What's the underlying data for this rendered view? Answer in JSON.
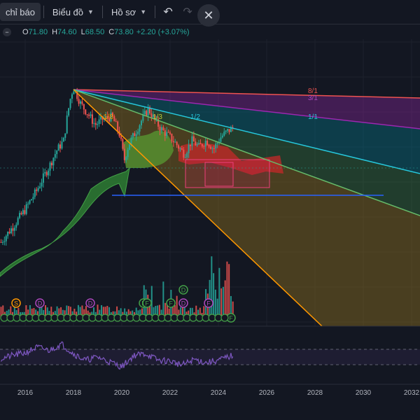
{
  "toolbar": {
    "indicators_label": "chỉ báo",
    "chart_label": "Biểu đồ",
    "profile_label": "Hồ sơ",
    "undo_icon": "undo-icon",
    "redo_icon": "redo-icon",
    "close_icon": "close-icon"
  },
  "legend": {
    "o_key": "O",
    "o_val": "71.80",
    "h_key": "H",
    "h_val": "74.60",
    "l_key": "L",
    "l_val": "68.50",
    "c_key": "C",
    "c_val": "73.80",
    "change": "+2.20 (+3.07%)"
  },
  "colors": {
    "bg": "#131722",
    "up": "#26a69a",
    "down": "#ef5350",
    "rsi": "#7e57c2",
    "hline": "#2962ff",
    "fan_orange": "#ff9800"
  },
  "chart_data": {
    "type": "candlestick",
    "x_ticks": [
      "2016",
      "2018",
      "2020",
      "2022",
      "2024",
      "2026",
      "2028",
      "2030",
      "2032"
    ],
    "x_range": [
      2015.0,
      2032.3
    ],
    "y_range_log_price": [
      22,
      118
    ],
    "gann_fan_labels": [
      "1/8",
      "1/3",
      "1/2",
      "1/1",
      "8/1",
      "3/1"
    ],
    "event_markers": [
      "S",
      "D",
      "D",
      "F",
      "F",
      "F",
      "D",
      "D",
      "F",
      "F"
    ],
    "price_points": [
      [
        2015.0,
        26
      ],
      [
        2015.5,
        30
      ],
      [
        2016.0,
        35
      ],
      [
        2016.5,
        42
      ],
      [
        2017.0,
        52
      ],
      [
        2017.3,
        60
      ],
      [
        2017.6,
        66
      ],
      [
        2017.9,
        100
      ],
      [
        2018.0,
        107
      ],
      [
        2018.3,
        92
      ],
      [
        2018.6,
        84
      ],
      [
        2018.9,
        76
      ],
      [
        2019.2,
        80
      ],
      [
        2019.6,
        82
      ],
      [
        2019.9,
        70
      ],
      [
        2020.1,
        55
      ],
      [
        2020.3,
        64
      ],
      [
        2020.6,
        72
      ],
      [
        2020.9,
        82
      ],
      [
        2021.1,
        88
      ],
      [
        2021.4,
        78
      ],
      [
        2021.7,
        72
      ],
      [
        2022.0,
        68
      ],
      [
        2022.3,
        63
      ],
      [
        2022.6,
        58
      ],
      [
        2022.9,
        66
      ],
      [
        2023.2,
        62
      ],
      [
        2023.5,
        66
      ],
      [
        2023.8,
        61
      ],
      [
        2024.1,
        68
      ],
      [
        2024.4,
        72
      ],
      [
        2024.6,
        73.8
      ]
    ],
    "resistance_line": 60,
    "rsi_points": [
      [
        2015.0,
        48
      ],
      [
        2015.5,
        52
      ],
      [
        2016.0,
        55
      ],
      [
        2016.5,
        62
      ],
      [
        2017.0,
        58
      ],
      [
        2017.5,
        66
      ],
      [
        2018.0,
        54
      ],
      [
        2018.5,
        46
      ],
      [
        2019.0,
        50
      ],
      [
        2019.5,
        44
      ],
      [
        2020.0,
        38
      ],
      [
        2020.5,
        52
      ],
      [
        2021.0,
        54
      ],
      [
        2021.5,
        46
      ],
      [
        2022.0,
        45
      ],
      [
        2022.5,
        40
      ],
      [
        2023.0,
        47
      ],
      [
        2023.5,
        43
      ],
      [
        2024.0,
        46
      ],
      [
        2024.6,
        52
      ]
    ]
  }
}
